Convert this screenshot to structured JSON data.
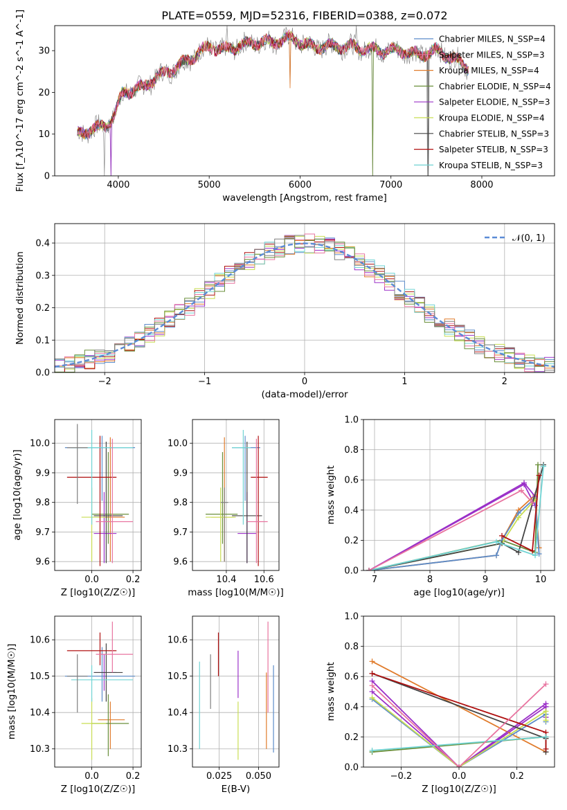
{
  "figure_title": "PLATE=0559, MJD=52316, FIBERID=0388, z=0.072",
  "palette": [
    "#5b8bc9",
    "#e07b2b",
    "#7f7f7f",
    "#6a8f3a",
    "#9b30c8",
    "#c8dd52",
    "#444444",
    "#b01010",
    "#6fd3d3",
    "#e8739f"
  ],
  "chart_data": [
    {
      "type": "line",
      "panel": "spectrum",
      "xlabel": "wavelength [Angstrom, rest frame]",
      "ylabel": "Flux [f_λ10^-17 erg cm^-2 s^-1 A^-1]",
      "xlim": [
        3300,
        8800
      ],
      "ylim": [
        0,
        36
      ],
      "xticks": [
        4000,
        5000,
        6000,
        7000,
        8000
      ],
      "yticks": [
        0,
        10,
        20,
        30
      ],
      "grid": false,
      "legend_position": "top-right",
      "continuum": {
        "x": [
          3550,
          3700,
          3850,
          3950,
          4050,
          4250,
          4450,
          4650,
          4850,
          5000,
          5150,
          5300,
          5500,
          5700,
          5900,
          6100,
          6300,
          6500,
          6700,
          6900,
          7100,
          7300,
          7500,
          7700,
          7850
        ],
        "y": [
          10,
          11,
          12,
          14,
          20,
          21,
          24,
          26,
          29,
          31,
          30,
          31,
          32,
          32,
          33,
          31,
          31,
          31,
          30.5,
          30,
          30,
          29,
          30,
          28,
          26
        ]
      },
      "series": [
        {
          "name": "Chabrier MILES, N_SSP=4"
        },
        {
          "name": "Salpeter MILES, N_SSP=3"
        },
        {
          "name": "Kroupa MILES, N_SSP=4"
        },
        {
          "name": "Chabrier ELODIE, N_SSP=4"
        },
        {
          "name": "Salpeter ELODIE, N_SSP=3"
        },
        {
          "name": "Kroupa ELODIE, N_SSP=4"
        },
        {
          "name": "Chabrier STELIB, N_SSP=3"
        },
        {
          "name": "Salpeter STELIB, N_SSP=3"
        },
        {
          "name": "Kroupa STELIB, N_SSP=3"
        }
      ]
    },
    {
      "type": "step",
      "panel": "residuals",
      "xlabel": "(data-model)/error",
      "ylabel": "Normed distribution",
      "xlim": [
        -2.5,
        2.5
      ],
      "ylim": [
        0,
        0.46
      ],
      "xticks": [
        -2,
        -1,
        0,
        1,
        2
      ],
      "xtick_labels": [
        "−2",
        "−1",
        "0",
        "1",
        "2"
      ],
      "yticks": [
        0.0,
        0.1,
        0.2,
        0.3,
        0.4
      ],
      "ytick_labels": [
        "0.0",
        "0.1",
        "0.2",
        "0.3",
        "0.4"
      ],
      "grid": true,
      "legend_position": "top-right",
      "legend_label": "𝒩(0, 1)",
      "bin_edges_range": [
        -2.5,
        2.5
      ],
      "bin_count": 50,
      "histogram_count": 9
    },
    {
      "type": "errorbar",
      "panel": "age-vs-Z",
      "xlabel": "Z [log10(Z/Z☉)]",
      "ylabel": "age  [log10(age/yr)]",
      "xlim": [
        -0.18,
        0.24
      ],
      "ylim": [
        9.57,
        10.08
      ],
      "xticks": [
        0.0,
        0.2
      ],
      "xtick_labels": [
        "0.0",
        "0.2"
      ],
      "yticks": [
        9.6,
        9.7,
        9.8,
        9.9,
        10.0
      ],
      "ytick_labels": [
        "9.6",
        "9.7",
        "9.8",
        "9.9",
        "10.0"
      ],
      "grid": true
    },
    {
      "type": "errorbar",
      "panel": "age-vs-mass",
      "xlabel": "mass [log10(M/M☉)]",
      "xlim": [
        10.22,
        10.68
      ],
      "ylim": [
        9.57,
        10.08
      ],
      "xticks": [
        10.4,
        10.6
      ],
      "xtick_labels": [
        "10.4",
        "10.6"
      ],
      "yticks": [
        9.6,
        9.7,
        9.8,
        9.9,
        10.0
      ],
      "ytick_labels": [
        "9.6",
        "9.7",
        "9.8",
        "9.9",
        "10.0"
      ],
      "grid": true
    },
    {
      "type": "line",
      "panel": "weight-vs-age",
      "xlabel": "age  [log10(age/yr)]",
      "ylabel": "mass weight",
      "xlim": [
        6.8,
        10.25
      ],
      "ylim": [
        0,
        1
      ],
      "xticks": [
        7,
        8,
        9,
        10
      ],
      "xtick_labels": [
        "7",
        "8",
        "9",
        "10"
      ],
      "yticks": [
        0.0,
        0.2,
        0.4,
        0.6,
        0.8,
        1.0
      ],
      "ytick_labels": [
        "0.0",
        "0.2",
        "0.4",
        "0.6",
        "0.8",
        "1.0"
      ],
      "grid": true,
      "series": [
        {
          "x": [
            6.9,
            9.3,
            9.9,
            9.95
          ],
          "y": [
            0.0,
            0.2,
            0.12,
            0.7
          ]
        },
        {
          "x": [
            6.9,
            9.7,
            9.9
          ],
          "y": [
            0.0,
            0.57,
            0.43
          ]
        },
        {
          "x": [
            6.9,
            9.2,
            9.3,
            9.6,
            9.9,
            9.97
          ],
          "y": [
            0.0,
            0.1,
            0.2,
            0.4,
            0.5,
            0.15
          ]
        },
        {
          "x": [
            6.9,
            9.2,
            9.3,
            9.6,
            9.9,
            9.97
          ],
          "y": [
            0.0,
            0.1,
            0.2,
            0.38,
            0.48,
            0.11
          ]
        },
        {
          "x": [
            6.9,
            9.7,
            9.9
          ],
          "y": [
            0.0,
            0.58,
            0.49
          ]
        },
        {
          "x": [
            6.9,
            9.3,
            9.6,
            9.9
          ],
          "y": [
            0.0,
            0.18,
            0.35,
            0.47
          ]
        },
        {
          "x": [
            6.9,
            9.3,
            9.6,
            10.05
          ],
          "y": [
            0.0,
            0.18,
            0.12,
            0.7
          ]
        },
        {
          "x": [
            9.3,
            9.85,
            9.97
          ],
          "y": [
            0.23,
            0.13,
            0.63
          ]
        },
        {
          "x": [
            6.9,
            9.2,
            9.9,
            10.05
          ],
          "y": [
            0.0,
            0.19,
            0.1,
            0.69
          ]
        },
        {
          "x": [
            6.9,
            9.65,
            9.85
          ],
          "y": [
            0.0,
            0.53,
            0.45
          ]
        }
      ]
    },
    {
      "type": "errorbar",
      "panel": "mass-vs-Z",
      "xlabel": "Z [log10(Z/Z☉)]",
      "ylabel": "mass [log10(M/M☉)]",
      "xlim": [
        -0.18,
        0.24
      ],
      "ylim": [
        10.25,
        10.665
      ],
      "xticks": [
        0.0,
        0.2
      ],
      "xtick_labels": [
        "0.0",
        "0.2"
      ],
      "yticks": [
        10.3,
        10.4,
        10.5,
        10.6
      ],
      "ytick_labels": [
        "10.3",
        "10.4",
        "10.5",
        "10.6"
      ],
      "grid": true
    },
    {
      "type": "errorbar",
      "panel": "mass-vs-EBV",
      "xlabel": "E(B-V)",
      "xlim": [
        0.008,
        0.063
      ],
      "ylim": [
        10.25,
        10.665
      ],
      "xticks": [
        0.025,
        0.05
      ],
      "xtick_labels": [
        "0.025",
        "0.050"
      ],
      "yticks": [
        10.3,
        10.4,
        10.5,
        10.6
      ],
      "ytick_labels": [
        "10.3",
        "10.4",
        "10.5",
        "10.6"
      ],
      "grid": true
    },
    {
      "type": "line",
      "panel": "weight-vs-Z",
      "xlabel": "Z [log10(Z/Z☉)]",
      "ylabel": "mass weight",
      "xlim": [
        -0.33,
        0.33
      ],
      "ylim": [
        0,
        1
      ],
      "xticks": [
        -0.2,
        0.0,
        0.2
      ],
      "xtick_labels": [
        "−0.2",
        "0.0",
        "0.2"
      ],
      "yticks": [
        0.0,
        0.2,
        0.4,
        0.6,
        0.8,
        1.0
      ],
      "ytick_labels": [
        "0.0",
        "0.2",
        "0.4",
        "0.6",
        "0.8",
        "1.0"
      ],
      "grid": true,
      "series": [
        {
          "x": [
            -0.3,
            0.3,
            0.3
          ],
          "y": [
            0.1,
            0.2,
            0.19
          ]
        },
        {
          "x": [
            -0.3,
            0.0,
            0.3,
            0.3
          ],
          "y": [
            0.5,
            0.0,
            0.4,
            0.33
          ]
        },
        {
          "x": [
            -0.3,
            0.3,
            0.3
          ],
          "y": [
            0.7,
            0.1,
            0.2
          ]
        },
        {
          "x": [
            -0.3,
            0.0,
            0.3,
            0.3
          ],
          "y": [
            0.45,
            0.0,
            0.35,
            0.3
          ]
        },
        {
          "x": [
            -0.3,
            0.0,
            0.3,
            0.3
          ],
          "y": [
            0.57,
            0.0,
            0.42,
            0.4
          ]
        },
        {
          "x": [
            -0.3,
            0.0,
            0.3,
            0.3
          ],
          "y": [
            0.46,
            0.0,
            0.37,
            0.31
          ]
        },
        {
          "x": [
            -0.3,
            0.3,
            0.3
          ],
          "y": [
            0.62,
            0.19,
            0.1
          ]
        },
        {
          "x": [
            -0.3,
            0.3,
            0.3
          ],
          "y": [
            0.62,
            0.23,
            0.12
          ]
        },
        {
          "x": [
            -0.3,
            0.3,
            0.3
          ],
          "y": [
            0.11,
            0.2,
            0.2
          ]
        },
        {
          "x": [
            -0.3,
            0.0,
            0.3
          ],
          "y": [
            0.54,
            0.0,
            0.55
          ]
        }
      ]
    }
  ],
  "errorbars": {
    "age_Z": [
      {
        "x": 0.05,
        "xerr": [
          0.18,
          0.16
        ],
        "y": 9.985,
        "yerr": [
          0.18,
          0.04
        ],
        "c": 0
      },
      {
        "x": 0.09,
        "xerr": [
          0.06,
          0.07
        ],
        "y": 9.75,
        "yerr": [
          0.15,
          0.27
        ],
        "c": 1
      },
      {
        "x": 0.08,
        "xerr": [
          0.08,
          0.1
        ],
        "y": 9.76,
        "yerr": [
          0.1,
          0.21
        ],
        "c": 3
      },
      {
        "x": 0.06,
        "xerr": [
          0.05,
          0.06
        ],
        "y": 9.695,
        "yerr": [
          0.1,
          0.14
        ],
        "c": 4
      },
      {
        "x": 0.0,
        "xerr": [
          0.05,
          0.07
        ],
        "y": 9.75,
        "yerr": [
          0.15,
          0.1
        ],
        "c": 5
      },
      {
        "x": 0.07,
        "xerr": [
          0.06,
          0.08
        ],
        "y": 9.755,
        "yerr": [
          0.16,
          0.25
        ],
        "c": 6
      },
      {
        "x": 0.04,
        "xerr": [
          0.16,
          0.08
        ],
        "y": 9.885,
        "yerr": [
          0.3,
          0.14
        ],
        "c": 7
      },
      {
        "x": 0.0,
        "xerr": [
          0.1,
          0.2
        ],
        "y": 9.985,
        "yerr": [
          0.26,
          0.06
        ],
        "c": 8
      },
      {
        "x": 0.1,
        "xerr": [
          0.08,
          0.1
        ],
        "y": 9.735,
        "yerr": [
          0.14,
          0.28
        ],
        "c": 9
      },
      {
        "x": -0.07,
        "xerr": [
          0.05,
          0.05
        ],
        "y": 9.985,
        "yerr": [
          0.19,
          0.08
        ],
        "c": 2
      }
    ],
    "age_mass": [
      {
        "x": 10.5,
        "xerr": [
          0.07,
          0.08
        ],
        "y": 9.985,
        "yerr": [
          0.18,
          0.04
        ],
        "c": 0
      },
      {
        "x": 10.39,
        "xerr": [
          0.07,
          0.05
        ],
        "y": 9.75,
        "yerr": [
          0.15,
          0.27
        ],
        "c": 1
      },
      {
        "x": 10.38,
        "xerr": [
          0.09,
          0.08
        ],
        "y": 9.76,
        "yerr": [
          0.1,
          0.21
        ],
        "c": 3
      },
      {
        "x": 10.51,
        "xerr": [
          0.05,
          0.05
        ],
        "y": 9.695,
        "yerr": [
          0.1,
          0.14
        ],
        "c": 4
      },
      {
        "x": 10.37,
        "xerr": [
          0.08,
          0.08
        ],
        "y": 9.75,
        "yerr": [
          0.15,
          0.1
        ],
        "c": 5
      },
      {
        "x": 10.51,
        "xerr": [
          0.08,
          0.08
        ],
        "y": 9.755,
        "yerr": [
          0.16,
          0.25
        ],
        "c": 6
      },
      {
        "x": 10.57,
        "xerr": [
          0.04,
          0.05
        ],
        "y": 9.885,
        "yerr": [
          0.3,
          0.14
        ],
        "c": 7
      },
      {
        "x": 10.49,
        "xerr": [
          0.06,
          0.04
        ],
        "y": 9.985,
        "yerr": [
          0.26,
          0.06
        ],
        "c": 8
      },
      {
        "x": 10.56,
        "xerr": [
          0.05,
          0.06
        ],
        "y": 9.735,
        "yerr": [
          0.14,
          0.28
        ],
        "c": 9
      },
      {
        "x": 10.39,
        "xerr": [
          0.02,
          0.02
        ],
        "y": 9.8,
        "yerr": [
          0.2,
          0.05
        ],
        "c": 2
      }
    ],
    "mass_Z": [
      {
        "x": 0.05,
        "xerr": [
          0.18,
          0.16
        ],
        "y": 10.5,
        "yerr": [
          0.07,
          0.08
        ],
        "c": 0
      },
      {
        "x": 0.09,
        "xerr": [
          0.06,
          0.07
        ],
        "y": 10.38,
        "yerr": [
          0.08,
          0.05
        ],
        "c": 1
      },
      {
        "x": 0.08,
        "xerr": [
          0.08,
          0.1
        ],
        "y": 10.37,
        "yerr": [
          0.09,
          0.08
        ],
        "c": 3
      },
      {
        "x": 0.06,
        "xerr": [
          0.05,
          0.06
        ],
        "y": 10.51,
        "yerr": [
          0.05,
          0.05
        ],
        "c": 4
      },
      {
        "x": 0.0,
        "xerr": [
          0.05,
          0.07
        ],
        "y": 10.37,
        "yerr": [
          0.1,
          0.07
        ],
        "c": 5
      },
      {
        "x": 0.07,
        "xerr": [
          0.06,
          0.08
        ],
        "y": 10.51,
        "yerr": [
          0.08,
          0.08
        ],
        "c": 6
      },
      {
        "x": 0.04,
        "xerr": [
          0.16,
          0.08
        ],
        "y": 10.57,
        "yerr": [
          0.04,
          0.05
        ],
        "c": 7
      },
      {
        "x": 0.0,
        "xerr": [
          0.1,
          0.2
        ],
        "y": 10.49,
        "yerr": [
          0.06,
          0.04
        ],
        "c": 8
      },
      {
        "x": 0.1,
        "xerr": [
          0.08,
          0.1
        ],
        "y": 10.56,
        "yerr": [
          0.05,
          0.09
        ],
        "c": 9
      },
      {
        "x": -0.07,
        "xerr": [
          0.05,
          0.05
        ],
        "y": 10.5,
        "yerr": [
          0.1,
          0.06
        ],
        "c": 2
      }
    ],
    "mass_ebv": [
      {
        "x": 0.0595,
        "y": 10.42,
        "yerr": [
          0.13,
          0.11
        ],
        "c": 0
      },
      {
        "x": 0.055,
        "y": 10.4,
        "yerr": [
          0.1,
          0.11
        ],
        "c": 1
      },
      {
        "x": 0.0195,
        "y": 10.48,
        "yerr": [
          0.07,
          0.08
        ],
        "c": 2
      },
      {
        "x": 0.037,
        "y": 10.35,
        "yerr": [
          0.08,
          0.08
        ],
        "c": 5
      },
      {
        "x": 0.037,
        "y": 10.5,
        "yerr": [
          0.06,
          0.07
        ],
        "c": 4
      },
      {
        "x": 0.0245,
        "y": 10.56,
        "yerr": [
          0.06,
          0.06
        ],
        "c": 7
      },
      {
        "x": 0.0125,
        "y": 10.42,
        "yerr": [
          0.12,
          0.12
        ],
        "c": 8
      },
      {
        "x": 0.056,
        "y": 10.5,
        "yerr": [
          0.1,
          0.15
        ],
        "c": 9
      }
    ]
  }
}
